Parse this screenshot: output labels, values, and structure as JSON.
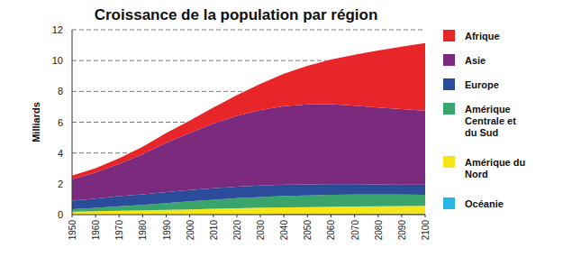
{
  "chart_data": {
    "type": "area",
    "title": "Croissance de la population par région",
    "y_label": "Milliards",
    "stacked": true,
    "grid": true,
    "legend": "right",
    "x": [
      1950,
      1960,
      1970,
      1980,
      1990,
      2000,
      2010,
      2020,
      2030,
      2040,
      2050,
      2060,
      2070,
      2080,
      2090,
      2100
    ],
    "xlim": [
      1950,
      2100
    ],
    "xticks": [
      1950,
      1960,
      1970,
      1980,
      1990,
      2000,
      2010,
      2020,
      2030,
      2040,
      2050,
      2060,
      2070,
      2080,
      2090,
      2100
    ],
    "ylim": [
      0,
      12
    ],
    "yticks": [
      0,
      2,
      4,
      6,
      8,
      10,
      12
    ],
    "series": [
      {
        "name": "Afrique",
        "color": "#e8262a",
        "values": [
          0.23,
          0.28,
          0.36,
          0.48,
          0.63,
          0.81,
          1.04,
          1.34,
          1.7,
          2.1,
          2.5,
          2.9,
          3.3,
          3.7,
          4.05,
          4.4
        ]
      },
      {
        "name": "Asie",
        "color": "#7b2a7e",
        "values": [
          1.4,
          1.7,
          2.1,
          2.6,
          3.2,
          3.7,
          4.2,
          4.6,
          4.9,
          5.1,
          5.2,
          5.2,
          5.1,
          5.0,
          4.9,
          4.8
        ]
      },
      {
        "name": "Europe",
        "color": "#2b4c9b",
        "values": [
          0.55,
          0.6,
          0.66,
          0.69,
          0.72,
          0.73,
          0.74,
          0.75,
          0.74,
          0.73,
          0.71,
          0.69,
          0.67,
          0.66,
          0.65,
          0.65
        ]
      },
      {
        "name": "Amérique Centrale et du Sud",
        "color": "#3aa56b",
        "values": [
          0.17,
          0.22,
          0.29,
          0.36,
          0.44,
          0.52,
          0.59,
          0.65,
          0.7,
          0.74,
          0.76,
          0.77,
          0.77,
          0.75,
          0.74,
          0.72
        ]
      },
      {
        "name": "Amérique du Nord",
        "color": "#f5e617",
        "values": [
          0.17,
          0.2,
          0.23,
          0.25,
          0.28,
          0.31,
          0.34,
          0.37,
          0.4,
          0.42,
          0.43,
          0.45,
          0.47,
          0.48,
          0.49,
          0.5
        ]
      },
      {
        "name": "Océanie",
        "color": "#29b5e8",
        "values": [
          0.013,
          0.016,
          0.02,
          0.023,
          0.027,
          0.031,
          0.037,
          0.043,
          0.048,
          0.053,
          0.057,
          0.061,
          0.064,
          0.067,
          0.07,
          0.072
        ]
      }
    ]
  }
}
